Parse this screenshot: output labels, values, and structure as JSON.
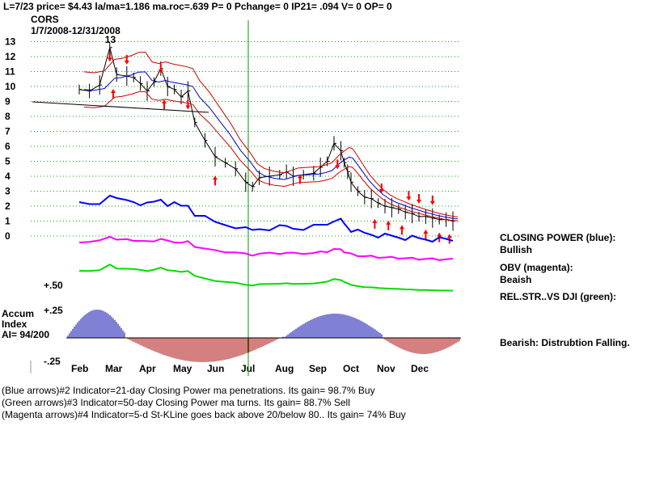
{
  "header": {
    "status_line": "L=7/23  price= $4.43  la/ma=1.186  ma.roc=.639 P=  0 Pchange=  0 IP21= .094 V= 0 OP= 0",
    "ticker": "CORS",
    "date_range": "1/7/2008-12/31/2008"
  },
  "side_notes": {
    "closing_power_label": "CLOSING POWER (blue):",
    "closing_power_value": "Bullish",
    "obv_label": "OBV (magenta):",
    "obv_value": "Beaish",
    "relstr_label": "REL.STR..VS DJI (green):",
    "accum_note": "Bearish: Distrubtion Falling."
  },
  "accum_panel": {
    "title_line1": "Accum",
    "title_line2": "Index",
    "ai_text": "AI= 94/200",
    "level_pos25": "+.25",
    "level_neg25": "-.25",
    "level_pos50": "+.50"
  },
  "footer": {
    "line1": "(Blue arrows)#2 Indicator=21-day Closing Power ma penetrations.  Its gain= 98.7% Buy",
    "line2": "(Green arrows)#3 Indicator=50-day Closing Power ma turns.  Its gain= 88.7% Sell",
    "line3": "(Magenta arrows)#4 Indicator=5-d St-KLine goes back above 20/below 80..  Its gain= 74% Buy"
  },
  "colors": {
    "price_bars": "#000000",
    "band_upper_lower": "#cc0000",
    "moving_average": "#0000cc",
    "closing_power": "#0000ff",
    "obv": "#ff00ff",
    "relative_strength": "#00dd00",
    "accum_positive": "#0000aa",
    "accum_negative": "#aa0000",
    "grid": "#00aa00",
    "arrows": "#ff0000",
    "marker_line": "#009900"
  },
  "chart_data": {
    "type": "line",
    "y_tick_labels": [
      "13",
      "12",
      "11",
      "10",
      "9",
      "8",
      "7",
      "6",
      "5",
      "4",
      "3",
      "2",
      "1",
      "0"
    ],
    "ylim": [
      0,
      13
    ],
    "month_labels": [
      "Feb",
      "Mar",
      "Apr",
      "May",
      "Jun",
      "Jul",
      "Aug",
      "Sep",
      "Oct",
      "Nov",
      "Dec"
    ],
    "grid": true,
    "marker_month": "Jul",
    "price": {
      "name": "CORS",
      "x_month": [
        0.0,
        0.3,
        0.6,
        0.9,
        1.1,
        1.4,
        1.6,
        1.8,
        2.0,
        2.2,
        2.4,
        2.6,
        2.8,
        3.0,
        3.2,
        3.4,
        3.7,
        4.0,
        4.3,
        4.6,
        4.9,
        5.1,
        5.3,
        5.6,
        5.9,
        6.1,
        6.3,
        6.6,
        6.9,
        7.1,
        7.3,
        7.5,
        7.7,
        7.8,
        7.9,
        8.0,
        8.2,
        8.4,
        8.6,
        8.8,
        9.0,
        9.2,
        9.4,
        9.6,
        9.8,
        10.0,
        10.2,
        10.4,
        10.6,
        10.8,
        11.0
      ],
      "close": [
        9.8,
        9.7,
        10.1,
        12.6,
        10.8,
        10.7,
        10.6,
        10.2,
        9.7,
        10.3,
        11.2,
        10.0,
        9.8,
        9.3,
        9.7,
        7.6,
        6.4,
        5.3,
        4.9,
        4.5,
        3.6,
        3.3,
        3.9,
        4.0,
        4.1,
        4.3,
        4.0,
        4.1,
        4.2,
        4.6,
        5.0,
        6.2,
        5.7,
        4.9,
        4.3,
        3.6,
        3.0,
        2.6,
        2.5,
        2.2,
        2.0,
        1.9,
        1.8,
        1.6,
        1.5,
        1.3,
        1.3,
        1.2,
        1.1,
        1.1,
        1.0
      ]
    },
    "price_annotations": [
      {
        "month": 0.9,
        "value": 12.6,
        "label": "13"
      }
    ]
  }
}
